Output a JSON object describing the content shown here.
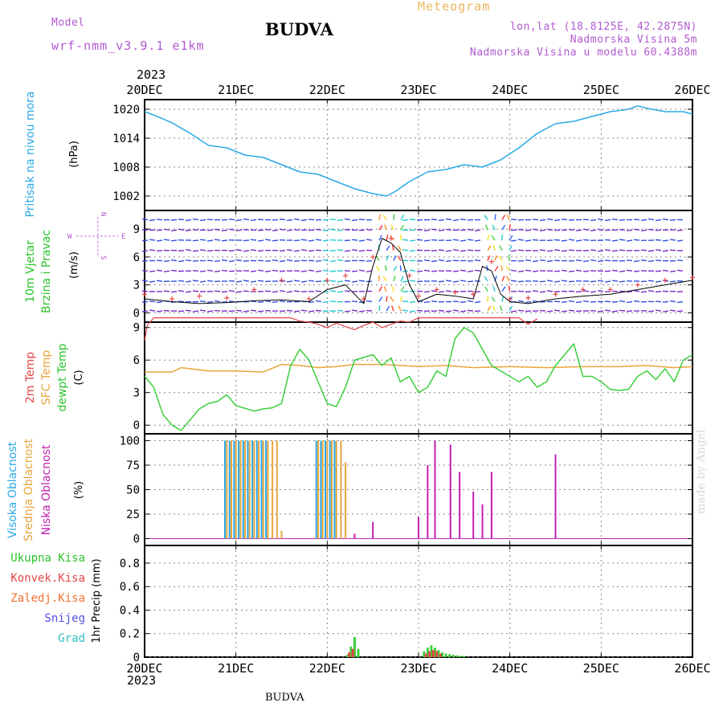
{
  "header": {
    "model_label": "Model",
    "model_name": "wrf-nmm_v3.9.1 e1km",
    "title": "BUDVA",
    "meteogram_label": "Meteogram",
    "lonlat": "lon,lat (18.8125E, 42.2875N)",
    "altitude": "Nadmorska Visina 5m",
    "model_altitude": "Nadmorska Visina u modelu 60.4388m",
    "year_top": "2023",
    "year_bottom": "2023",
    "footer_title": "BUDVA",
    "watermark": "made by Angel"
  },
  "time_axis": {
    "start": "2023-12-20",
    "end": "2023-12-26",
    "ticks": [
      "20DEC",
      "21DEC",
      "22DEC",
      "23DEC",
      "24DEC",
      "25DEC",
      "26DEC"
    ]
  },
  "colors": {
    "pressure": "#2aa8e6",
    "temp2m": "#e64646",
    "sfc_temp": "#e8a53c",
    "dewpt": "#3ccf3c",
    "high_cloud": "#2aa8e6",
    "mid_cloud": "#e8a53c",
    "low_cloud": "#c020b0",
    "wind_speed": "#000000",
    "gust_marker": "#e64646"
  },
  "panel_labels": {
    "pressure": {
      "name": "Pritisak na nivou mora",
      "unit": "(hPa)"
    },
    "wind": {
      "line1": "10m Vjetar",
      "line2": "Brzina i Pravac",
      "unit": "(m/s)",
      "compass_n": "N",
      "compass_s": "S",
      "compass_w": "W",
      "compass_e": "E"
    },
    "temp": {
      "l1": "2m Temp",
      "l2": "SFC Temp",
      "l3": "dewpt Temp",
      "unit": "(C)"
    },
    "cloud": {
      "l1": "Visoka Oblacnost",
      "l2": "Srednja Oblacnost",
      "l3": "Niska Oblacnost",
      "unit": "(%)"
    },
    "precip": {
      "l1": "Ukupna Kisa",
      "l2": "Konvek.Kisa",
      "l3": "Zaledj.Kisa",
      "l4": "Snijeg",
      "l5": "Grad",
      "unit": "1hr Precip (mm)"
    }
  },
  "chart_data": [
    {
      "type": "line",
      "id": "pressure",
      "ylabel": "(hPa)",
      "ylim": [
        999,
        1022
      ],
      "yticks": [
        1002,
        1008,
        1014,
        1020
      ],
      "grid": true,
      "series": [
        {
          "name": "Pritisak na nivou mora",
          "x": [
            0,
            0.1,
            0.3,
            0.5,
            0.7,
            0.9,
            1.1,
            1.3,
            1.5,
            1.7,
            1.9,
            2.1,
            2.3,
            2.5,
            2.65,
            2.75,
            2.9,
            3.1,
            3.3,
            3.5,
            3.7,
            3.9,
            4.1,
            4.3,
            4.5,
            4.7,
            4.9,
            5.1,
            5.3,
            5.4,
            5.5,
            5.7,
            5.9,
            6.0
          ],
          "values": [
            1019.5,
            1018.8,
            1017.2,
            1015.0,
            1012.5,
            1012.0,
            1010.5,
            1010.0,
            1008.5,
            1007.0,
            1006.5,
            1005.0,
            1003.5,
            1002.5,
            1002.0,
            1003.0,
            1005.0,
            1007.0,
            1007.5,
            1008.5,
            1008.0,
            1009.5,
            1012.0,
            1015.0,
            1017.0,
            1017.5,
            1018.5,
            1019.5,
            1020.0,
            1020.7,
            1020.2,
            1019.5,
            1019.5,
            1019.0
          ]
        }
      ]
    },
    {
      "type": "line",
      "id": "wind",
      "ylabel": "(m/s)",
      "ylim": [
        -1,
        11
      ],
      "yticks": [
        0,
        3,
        6,
        9
      ],
      "grid": true,
      "series": [
        {
          "name": "wind speed",
          "x": [
            0,
            0.3,
            0.6,
            0.9,
            1.2,
            1.5,
            1.8,
            2.0,
            2.2,
            2.4,
            2.5,
            2.6,
            2.7,
            2.8,
            2.9,
            3.0,
            3.2,
            3.4,
            3.6,
            3.7,
            3.8,
            3.9,
            4.0,
            4.2,
            4.5,
            4.8,
            5.1,
            5.4,
            5.7,
            6.0
          ],
          "values": [
            1.5,
            1.2,
            1.0,
            1.1,
            1.3,
            1.4,
            1.2,
            2.5,
            3.0,
            1.0,
            5.0,
            8.0,
            7.5,
            6.5,
            3.0,
            1.2,
            2.0,
            1.8,
            1.5,
            5.0,
            4.5,
            2.0,
            1.2,
            1.0,
            1.5,
            1.8,
            2.0,
            2.5,
            3.0,
            3.5
          ]
        },
        {
          "name": "gust",
          "x": [
            0,
            0.3,
            0.6,
            0.9,
            1.2,
            1.5,
            1.8,
            2.0,
            2.2,
            2.4,
            2.5,
            2.7,
            2.9,
            3.0,
            3.2,
            3.4,
            3.6,
            3.8,
            4.0,
            4.2,
            4.5,
            4.8,
            5.1,
            5.4,
            5.7,
            6.0
          ],
          "values": [
            2.0,
            1.5,
            1.8,
            1.6,
            2.5,
            3.5,
            1.5,
            3.5,
            4.0,
            1.5,
            6.0,
            8.0,
            4.0,
            1.8,
            2.5,
            2.2,
            2.0,
            5.5,
            1.5,
            1.6,
            2.0,
            2.5,
            2.5,
            3.0,
            3.5,
            3.8
          ]
        }
      ]
    },
    {
      "type": "line",
      "id": "temp",
      "ylabel": "(C)",
      "ylim": [
        -0.8,
        9.5
      ],
      "yticks": [
        0,
        3,
        6,
        9
      ],
      "grid": true,
      "series": [
        {
          "name": "2m Temp",
          "x": [
            0,
            0.03,
            0.1,
            1.6,
            1.7,
            1.8,
            1.9,
            2.0,
            2.1,
            2.2,
            2.3,
            2.4,
            2.5,
            2.6,
            2.7,
            2.8,
            2.9,
            3.0,
            4.1,
            4.2,
            4.3
          ],
          "values": [
            7.8,
            9.2,
            9.9,
            9.9,
            9.6,
            9.5,
            9.3,
            9.0,
            9.4,
            9.1,
            8.8,
            9.2,
            9.5,
            9.0,
            9.3,
            9.6,
            9.5,
            9.9,
            9.9,
            9.3,
            9.8
          ]
        },
        {
          "name": "SFC Temp",
          "x": [
            0,
            0.3,
            0.4,
            0.7,
            1.0,
            1.3,
            1.5,
            1.7,
            1.9,
            2.1,
            2.3,
            2.6,
            3.0,
            3.3,
            3.6,
            4.0,
            4.4,
            4.8,
            5.2,
            5.5,
            5.8,
            6.0
          ],
          "values": [
            4.9,
            4.9,
            5.3,
            5.0,
            5.0,
            4.9,
            5.6,
            5.5,
            5.3,
            5.4,
            5.6,
            5.6,
            5.4,
            5.5,
            5.3,
            5.4,
            5.3,
            5.4,
            5.4,
            5.5,
            5.3,
            5.4
          ]
        },
        {
          "name": "dewpt Temp",
          "x": [
            0,
            0.1,
            0.2,
            0.3,
            0.4,
            0.6,
            0.7,
            0.8,
            0.9,
            1.0,
            1.2,
            1.3,
            1.4,
            1.5,
            1.6,
            1.7,
            1.8,
            1.9,
            2.0,
            2.1,
            2.2,
            2.3,
            2.5,
            2.6,
            2.7,
            2.8,
            2.9,
            3.0,
            3.1,
            3.2,
            3.3,
            3.4,
            3.5,
            3.6,
            3.7,
            3.8,
            3.9,
            4.0,
            4.1,
            4.2,
            4.3,
            4.4,
            4.5,
            4.6,
            4.7,
            4.8,
            4.9,
            5.0,
            5.1,
            5.2,
            5.3,
            5.4,
            5.5,
            5.6,
            5.7,
            5.8,
            5.9,
            6.0
          ],
          "values": [
            4.5,
            3.5,
            1.0,
            0.0,
            -0.5,
            1.5,
            2.0,
            2.2,
            2.8,
            1.8,
            1.3,
            1.5,
            1.6,
            2.0,
            5.5,
            7.0,
            6.0,
            4.0,
            2.0,
            1.7,
            3.5,
            6.0,
            6.5,
            5.5,
            6.2,
            4.0,
            4.5,
            3.0,
            3.5,
            5.0,
            4.5,
            8.0,
            9.0,
            8.5,
            7.0,
            5.5,
            5.0,
            4.5,
            4.0,
            4.5,
            3.5,
            4.0,
            5.5,
            6.5,
            7.5,
            4.5,
            4.5,
            4.0,
            3.3,
            3.2,
            3.3,
            4.5,
            5.0,
            4.2,
            5.2,
            4.0,
            6.0,
            6.5
          ]
        }
      ]
    },
    {
      "type": "bar",
      "id": "cloud",
      "ylabel": "(%)",
      "ylim": [
        -7,
        107
      ],
      "yticks": [
        0,
        25,
        50,
        75,
        100
      ],
      "grid": true,
      "series": [
        {
          "name": "Visoka Oblacnost",
          "x": [
            0.88,
            0.93,
            0.98,
            1.03,
            1.08,
            1.13,
            1.18,
            1.23,
            1.28,
            1.33,
            1.88,
            1.93,
            1.98,
            2.03,
            2.08
          ],
          "values": [
            100,
            100,
            100,
            100,
            100,
            100,
            100,
            100,
            100,
            100,
            100,
            100,
            100,
            100,
            100
          ]
        },
        {
          "name": "Srednja Oblacnost",
          "x": [
            0.9,
            0.95,
            1.0,
            1.05,
            1.1,
            1.15,
            1.2,
            1.25,
            1.3,
            1.35,
            1.4,
            1.45,
            1.5,
            1.9,
            1.95,
            2.0,
            2.05,
            2.1,
            2.15,
            2.2
          ],
          "values": [
            100,
            100,
            100,
            100,
            100,
            100,
            100,
            100,
            100,
            100,
            100,
            100,
            8,
            100,
            100,
            100,
            100,
            100,
            100,
            78
          ]
        },
        {
          "name": "Niska Oblacnost",
          "x": [
            2.3,
            2.5,
            3.0,
            3.1,
            3.18,
            3.35,
            3.45,
            3.6,
            3.7,
            3.8,
            4.5
          ],
          "values": [
            5,
            17,
            22,
            75,
            100,
            96,
            68,
            48,
            35,
            68,
            86
          ]
        }
      ]
    },
    {
      "type": "bar",
      "id": "precip",
      "ylabel": "1hr Precip (mm)",
      "ylim": [
        0,
        0.95
      ],
      "yticks": [
        0,
        0.2,
        0.4,
        0.6,
        0.8
      ],
      "grid": true,
      "series": [
        {
          "name": "Ukupna Kisa",
          "x": [
            2.22,
            2.26,
            2.3,
            2.34,
            3.06,
            3.1,
            3.14,
            3.18,
            3.22,
            3.26,
            3.3,
            3.34,
            3.38,
            3.42,
            3.46,
            3.5
          ],
          "values": [
            0.02,
            0.09,
            0.17,
            0.07,
            0.05,
            0.08,
            0.1,
            0.08,
            0.06,
            0.04,
            0.03,
            0.025,
            0.02,
            0.015,
            0.01,
            0.01
          ]
        },
        {
          "name": "Konvek.Kisa",
          "x": [
            2.24,
            2.28,
            3.08,
            3.12,
            3.16,
            3.2,
            3.24
          ],
          "values": [
            0.04,
            0.07,
            0.03,
            0.05,
            0.06,
            0.05,
            0.03
          ]
        }
      ]
    }
  ]
}
